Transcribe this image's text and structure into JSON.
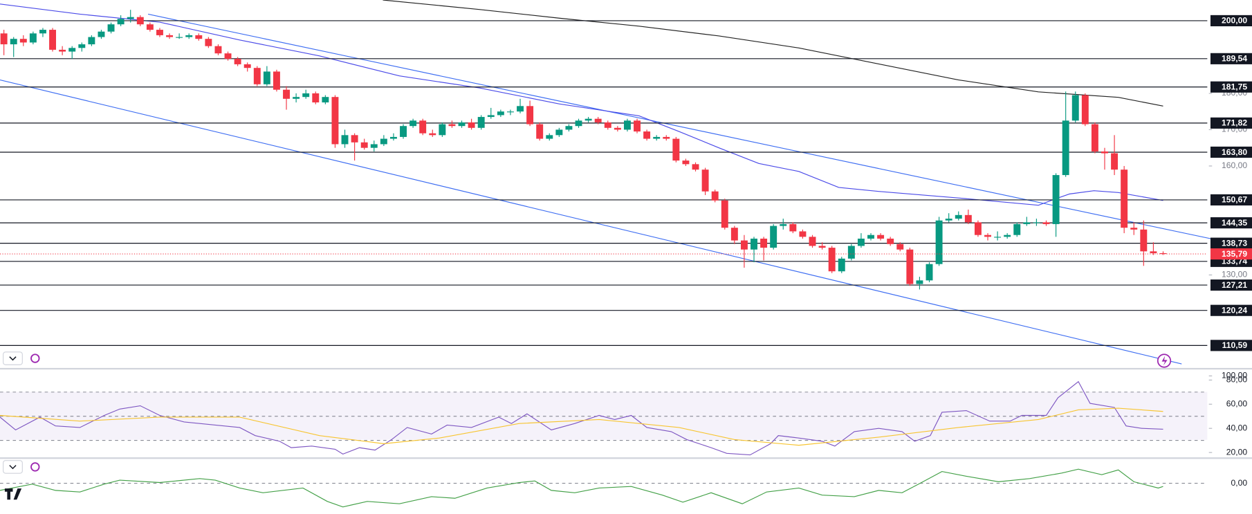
{
  "chart_data": {
    "type": "candlestick",
    "ohlc": [
      [
        196.5,
        197.5,
        190.5,
        193.5
      ],
      [
        193.5,
        195.5,
        190.0,
        195.0
      ],
      [
        195.0,
        196.0,
        193.0,
        194.0
      ],
      [
        194.0,
        197.0,
        193.5,
        196.5
      ],
      [
        196.5,
        198.0,
        195.5,
        197.5
      ],
      [
        197.5,
        198.0,
        191.5,
        192.0
      ],
      [
        192.0,
        193.0,
        190.5,
        191.5
      ],
      [
        191.5,
        193.0,
        189.5,
        192.5
      ],
      [
        192.5,
        194.0,
        191.5,
        193.5
      ],
      [
        193.5,
        196.0,
        193.0,
        195.5
      ],
      [
        195.5,
        197.5,
        195.0,
        197.0
      ],
      [
        197.0,
        199.5,
        196.5,
        199.0
      ],
      [
        199.0,
        201.5,
        198.5,
        200.5
      ],
      [
        200.5,
        203.0,
        199.5,
        201.0
      ],
      [
        201.0,
        201.5,
        198.5,
        199.0
      ],
      [
        199.0,
        199.5,
        197.0,
        197.5
      ],
      [
        197.5,
        198.0,
        195.5,
        196.0
      ],
      [
        196.0,
        196.5,
        195.0,
        195.5
      ],
      [
        195.5,
        196.5,
        195.0,
        195.5
      ],
      [
        195.5,
        196.5,
        195.0,
        196.0
      ],
      [
        196.0,
        196.5,
        194.5,
        195.0
      ],
      [
        195.0,
        195.5,
        192.5,
        193.0
      ],
      [
        193.0,
        193.5,
        190.5,
        191.0
      ],
      [
        191.0,
        191.5,
        189.0,
        189.5
      ],
      [
        189.5,
        190.0,
        187.5,
        188.0
      ],
      [
        188.0,
        188.5,
        186.0,
        187.0
      ],
      [
        187.0,
        187.5,
        182.0,
        182.5
      ],
      [
        182.5,
        187.5,
        182.0,
        186.0
      ],
      [
        186.0,
        186.5,
        180.5,
        181.0
      ],
      [
        181.0,
        182.0,
        175.5,
        178.5
      ],
      [
        178.5,
        180.0,
        177.5,
        179.0
      ],
      [
        179.0,
        181.0,
        178.5,
        180.0
      ],
      [
        180.0,
        180.5,
        177.0,
        177.5
      ],
      [
        177.5,
        179.5,
        177.0,
        179.0
      ],
      [
        179.0,
        179.5,
        165.0,
        166.0
      ],
      [
        166.0,
        170.0,
        165.0,
        168.5
      ],
      [
        168.5,
        169.0,
        161.5,
        166.5
      ],
      [
        166.5,
        167.5,
        164.5,
        165.0
      ],
      [
        165.0,
        167.0,
        164.0,
        166.0
      ],
      [
        166.0,
        168.5,
        165.5,
        167.5
      ],
      [
        167.5,
        169.0,
        167.0,
        168.0
      ],
      [
        168.0,
        171.5,
        167.5,
        171.0
      ],
      [
        171.0,
        173.0,
        170.5,
        172.5
      ],
      [
        172.5,
        173.0,
        168.5,
        169.0
      ],
      [
        169.0,
        170.0,
        168.0,
        168.5
      ],
      [
        168.5,
        172.0,
        168.0,
        171.5
      ],
      [
        171.5,
        172.5,
        170.5,
        171.0
      ],
      [
        171.0,
        172.5,
        170.5,
        172.0
      ],
      [
        172.0,
        173.0,
        170.0,
        170.5
      ],
      [
        170.5,
        174.0,
        170.0,
        173.5
      ],
      [
        173.5,
        176.0,
        173.0,
        174.0
      ],
      [
        174.0,
        175.5,
        173.5,
        175.0
      ],
      [
        175.0,
        175.5,
        174.0,
        175.0
      ],
      [
        175.0,
        178.5,
        174.5,
        176.5
      ],
      [
        176.5,
        178.0,
        171.0,
        171.5
      ],
      [
        171.5,
        172.0,
        167.0,
        167.5
      ],
      [
        167.5,
        169.0,
        167.0,
        168.5
      ],
      [
        168.5,
        170.5,
        168.0,
        170.0
      ],
      [
        170.0,
        171.5,
        169.5,
        171.0
      ],
      [
        171.0,
        173.0,
        170.5,
        172.5
      ],
      [
        172.5,
        173.5,
        172.0,
        173.0
      ],
      [
        173.0,
        173.5,
        171.5,
        172.0
      ],
      [
        172.0,
        172.5,
        170.0,
        170.5
      ],
      [
        170.5,
        171.0,
        169.5,
        170.0
      ],
      [
        170.0,
        173.0,
        169.5,
        172.5
      ],
      [
        172.5,
        173.0,
        169.0,
        169.5
      ],
      [
        169.5,
        170.0,
        167.0,
        167.5
      ],
      [
        167.5,
        168.5,
        167.0,
        168.0
      ],
      [
        168.0,
        168.5,
        167.0,
        167.5
      ],
      [
        167.5,
        168.0,
        161.0,
        161.5
      ],
      [
        161.5,
        162.0,
        160.0,
        160.5
      ],
      [
        160.5,
        161.0,
        158.5,
        159.0
      ],
      [
        159.0,
        159.5,
        152.0,
        153.0
      ],
      [
        153.0,
        153.5,
        150.0,
        150.5
      ],
      [
        150.5,
        151.0,
        142.5,
        143.0
      ],
      [
        143.0,
        143.5,
        138.5,
        139.5
      ],
      [
        139.5,
        141.0,
        132.0,
        137.0
      ],
      [
        137.0,
        140.5,
        133.5,
        140.0
      ],
      [
        140.0,
        140.5,
        134.0,
        137.5
      ],
      [
        137.5,
        144.0,
        137.0,
        143.5
      ],
      [
        143.5,
        145.5,
        142.5,
        144.0
      ],
      [
        144.0,
        144.5,
        141.5,
        142.0
      ],
      [
        142.0,
        142.5,
        140.0,
        140.5
      ],
      [
        140.5,
        141.0,
        137.5,
        138.0
      ],
      [
        138.0,
        139.0,
        137.0,
        137.5
      ],
      [
        137.5,
        138.0,
        130.5,
        131.0
      ],
      [
        131.0,
        135.0,
        130.5,
        134.5
      ],
      [
        134.5,
        138.5,
        134.0,
        138.0
      ],
      [
        138.0,
        141.5,
        137.5,
        140.0
      ],
      [
        140.0,
        141.5,
        139.5,
        141.0
      ],
      [
        141.0,
        141.5,
        139.5,
        140.0
      ],
      [
        140.0,
        140.5,
        138.0,
        138.5
      ],
      [
        138.5,
        139.0,
        136.5,
        137.0
      ],
      [
        137.0,
        137.5,
        127.0,
        127.5
      ],
      [
        127.5,
        129.5,
        126.0,
        128.5
      ],
      [
        128.5,
        133.5,
        128.0,
        133.0
      ],
      [
        133.0,
        146.0,
        132.5,
        145.0
      ],
      [
        145.0,
        147.0,
        144.5,
        145.5
      ],
      [
        145.5,
        147.5,
        145.0,
        146.5
      ],
      [
        146.5,
        148.0,
        144.0,
        144.5
      ],
      [
        144.5,
        145.0,
        140.5,
        141.0
      ],
      [
        141.0,
        141.5,
        139.5,
        140.5
      ],
      [
        140.5,
        142.0,
        139.5,
        140.5
      ],
      [
        140.5,
        141.5,
        140.0,
        141.0
      ],
      [
        141.0,
        144.5,
        140.5,
        144.0
      ],
      [
        144.0,
        146.0,
        143.5,
        144.5
      ],
      [
        144.5,
        145.5,
        143.5,
        144.5
      ],
      [
        144.5,
        145.0,
        143.5,
        144.0
      ],
      [
        144.0,
        158.0,
        140.5,
        157.5
      ],
      [
        157.5,
        180.5,
        157.0,
        172.5
      ],
      [
        172.5,
        180.5,
        172.0,
        179.5
      ],
      [
        179.5,
        180.0,
        171.0,
        171.5
      ],
      [
        171.5,
        172.0,
        163.5,
        164.0
      ],
      [
        164.0,
        165.0,
        159.0,
        163.5
      ],
      [
        163.5,
        168.5,
        157.5,
        159.0
      ],
      [
        159.0,
        160.0,
        141.5,
        143.0
      ],
      [
        143.0,
        144.5,
        141.0,
        142.5
      ],
      [
        142.5,
        145.0,
        132.5,
        136.5
      ],
      [
        136.5,
        139.0,
        135.5,
        136.0
      ],
      [
        136.0,
        136.5,
        135.5,
        135.79
      ]
    ],
    "up_color": "#089981",
    "down_color": "#f23645",
    "ylim": [
      104.4,
      205.7
    ],
    "yticks": [
      {
        "value": 180,
        "label": "180,00"
      },
      {
        "value": 170,
        "label": "170,00"
      },
      {
        "value": 160,
        "label": "160,00"
      },
      {
        "value": 130,
        "label": "130,00"
      }
    ],
    "levels": [
      {
        "value": 200,
        "label": "200,00"
      },
      {
        "value": 189.54,
        "label": "189,54"
      },
      {
        "value": 181.75,
        "label": "181,75"
      },
      {
        "value": 171.82,
        "label": "171,82"
      },
      {
        "value": 163.8,
        "label": "163,80"
      },
      {
        "value": 150.67,
        "label": "150,67"
      },
      {
        "value": 144.35,
        "label": "144,35"
      },
      {
        "value": 138.73,
        "label": "138,73"
      },
      {
        "value": 133.74,
        "label": "133,74"
      },
      {
        "value": 127.21,
        "label": "127,21"
      },
      {
        "value": 120.24,
        "label": "120,24"
      },
      {
        "value": 110.59,
        "label": "110,59"
      }
    ],
    "last_price": {
      "value": 135.79,
      "label": "135,79",
      "color": "#f23645"
    },
    "moving_averages": [
      {
        "color": "#4a4ae8",
        "x": [
          -0.4,
          7.8,
          16,
          24.2,
          32.4,
          40.6,
          48.8,
          57,
          65.2,
          69.3,
          73.4,
          77.5,
          81.6,
          85.7,
          89.8,
          93.9,
          98,
          106.2,
          107.8,
          109.4,
          111.9,
          114.4,
          119
        ],
        "values": [
          204.6,
          201.8,
          199.6,
          194.7,
          190.3,
          184.8,
          181.5,
          177.1,
          173.8,
          169.5,
          165,
          160.7,
          158.5,
          154.1,
          153,
          152.1,
          151.2,
          149.2,
          150.8,
          152.3,
          153.2,
          152.7,
          150.5
        ]
      },
      {
        "color": "#222222",
        "x": [
          38.9,
          48.8,
          57,
          65.2,
          73.4,
          81.6,
          89.8,
          98,
          106.2,
          114.4,
          119
        ],
        "values": [
          205.7,
          203.1,
          200.7,
          198.5,
          195.8,
          192.5,
          188.1,
          183.7,
          180.4,
          178.9,
          176.5
        ]
      }
    ],
    "trendlines": [
      {
        "color": "#3d6df2",
        "x": [
          14.8,
          128.1
        ],
        "values": [
          201.8,
          137.6
        ]
      },
      {
        "color": "#3d6df2",
        "x": [
          -0.4,
          120.9
        ],
        "values": [
          183.7,
          105.5
        ]
      }
    ],
    "rsi": {
      "ylim": [
        16,
        88.7
      ],
      "yticks": [
        {
          "value": 100,
          "label": "100,00"
        },
        {
          "value": 80,
          "label": "80,00"
        },
        {
          "value": 60,
          "label": "60,00"
        },
        {
          "value": 40,
          "label": "40,00"
        },
        {
          "value": 20,
          "label": "20,00"
        }
      ],
      "bands": [
        70,
        50,
        30
      ],
      "series": [
        {
          "color": "#7e57c2",
          "x": [
            -0.4,
            1.2,
            3.7,
            5.3,
            7.8,
            10.3,
            11.9,
            14,
            16,
            18.5,
            21.7,
            24.2,
            25.8,
            28.3,
            29.5,
            31.6,
            34,
            34.8,
            36.5,
            38.1,
            39.8,
            41.4,
            43.9,
            45.5,
            48,
            50.8,
            52.1,
            53.7,
            56.2,
            58.6,
            61.1,
            62.7,
            64.4,
            66,
            68.5,
            70.1,
            72.6,
            74.2,
            76.6,
            78.7,
            79.5,
            81.6,
            84,
            85.3,
            87.3,
            89.8,
            92.2,
            93.5,
            95.1,
            96.3,
            98.8,
            101.2,
            103.3,
            104.5,
            107,
            108.2,
            110.3,
            111.5,
            114,
            115.2,
            116.8,
            119
          ],
          "values": [
            49.3,
            38.7,
            49.3,
            42,
            40.7,
            50.7,
            56,
            58.7,
            50.7,
            45.3,
            42.7,
            40.7,
            34,
            29.3,
            24,
            25.3,
            22.7,
            18.7,
            24,
            22,
            30.7,
            40.7,
            35.3,
            42.7,
            40.7,
            49.3,
            44,
            52,
            38.7,
            44,
            50.7,
            47.3,
            50.7,
            40.7,
            37.3,
            30.7,
            24,
            19.3,
            18,
            27.3,
            34,
            32,
            29.3,
            25.3,
            37.3,
            40,
            37.3,
            29.3,
            34,
            53.3,
            54.7,
            46,
            46,
            50.7,
            50.7,
            65.3,
            78.7,
            60.7,
            57.3,
            42,
            40,
            39.3
          ]
        },
        {
          "color": "#f7c531",
          "x": [
            -0.4,
            7.8,
            16,
            24.2,
            32.4,
            39,
            44.7,
            52.9,
            61.1,
            69.3,
            75,
            81.6,
            89.8,
            98,
            106.2,
            110.3,
            114.4,
            119
          ],
          "values": [
            50.7,
            46,
            49.3,
            49.3,
            34,
            27.3,
            32,
            44,
            47.3,
            40.7,
            30.7,
            26,
            32.7,
            40.7,
            47.3,
            55.3,
            56.7,
            54
          ]
        }
      ]
    },
    "macd": {
      "ylim": [
        -3.9,
        3.1
      ],
      "yticks": [
        {
          "value": 0,
          "label": "0,00"
        }
      ],
      "series": [
        {
          "color": "#43a047",
          "x": [
            -0.4,
            2.9,
            5.3,
            7.8,
            10.3,
            11.9,
            16,
            20.1,
            21.7,
            24.2,
            26.6,
            30.7,
            33.2,
            34.8,
            37.3,
            40.6,
            43.9,
            46.3,
            49.6,
            52.9,
            54.5,
            56.2,
            58.6,
            61.1,
            64.4,
            67.6,
            69.7,
            72.6,
            75.8,
            78.3,
            81.6,
            84,
            87.3,
            89.8,
            92.2,
            93.9,
            96.3,
            98.8,
            102.1,
            105.3,
            108.6,
            110.3,
            112.7,
            114.4,
            116,
            118.5,
            119
          ],
          "values": [
            -0.9,
            -0.1,
            -0.9,
            -1.1,
            -0.1,
            0.4,
            0.1,
            0.6,
            0.4,
            -0.6,
            -1.2,
            -0.6,
            -2.3,
            -3.0,
            -2.3,
            -2.6,
            -1.7,
            -1.9,
            -0.6,
            0.1,
            0.3,
            -0.9,
            -1.2,
            -0.6,
            -0.4,
            -1.5,
            -2.4,
            -1.2,
            -2.6,
            -1.1,
            -0.6,
            -1.5,
            -1.7,
            -0.9,
            -1.2,
            -0.1,
            1.5,
            0.9,
            0.2,
            0.6,
            1.3,
            1.8,
            1.1,
            1.7,
            0.2,
            -0.6,
            -0.4
          ]
        }
      ]
    }
  }
}
